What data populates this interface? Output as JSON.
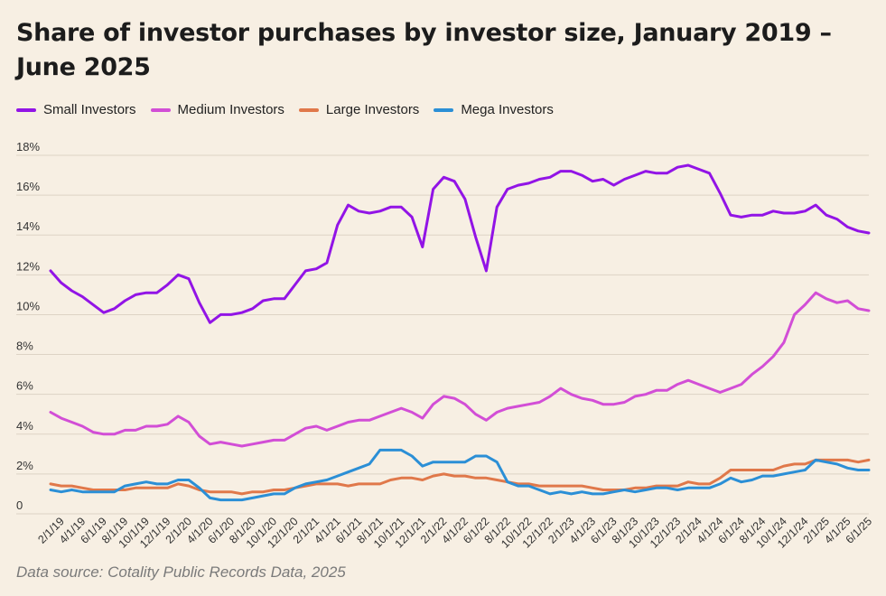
{
  "chart_data": {
    "type": "line",
    "title": "Share of investor purchases by investor size, January 2019 – June 2025",
    "xlabel": "",
    "ylabel": "",
    "ylim": [
      0,
      18
    ],
    "y_ticks": [
      "0",
      "2%",
      "4%",
      "6%",
      "8%",
      "10%",
      "12%",
      "14%",
      "16%",
      "18%"
    ],
    "x_tick_labels": [
      "2/1/19",
      "4/1/19",
      "6/1/19",
      "8/1/19",
      "10/1/19",
      "12/1/19",
      "2/1/20",
      "4/1/20",
      "6/1/20",
      "8/1/20",
      "10/1/20",
      "12/1/20",
      "2/1/21",
      "4/1/21",
      "6/1/21",
      "8/1/21",
      "10/1/21",
      "12/1/21",
      "2/1/22",
      "4/1/22",
      "6/1/22",
      "8/1/22",
      "10/1/22",
      "12/1/22",
      "2/1/23",
      "4/1/23",
      "6/1/23",
      "8/1/23",
      "10/1/23",
      "12/1/23",
      "2/1/24",
      "4/1/24",
      "6/1/24",
      "8/1/24",
      "10/1/24",
      "12/1/24",
      "2/1/25",
      "4/1/25",
      "6/1/25"
    ],
    "legend_position": "top-left",
    "series": [
      {
        "name": "Small Investors",
        "color": "#9214e6",
        "values": [
          12.2,
          11.6,
          11.2,
          10.9,
          10.5,
          10.1,
          10.3,
          10.7,
          11.0,
          11.1,
          11.1,
          11.5,
          12.0,
          11.8,
          10.6,
          9.6,
          10.0,
          10.0,
          10.1,
          10.3,
          10.7,
          10.8,
          10.8,
          11.5,
          12.2,
          12.3,
          12.6,
          14.5,
          15.5,
          15.2,
          15.1,
          15.2,
          15.4,
          15.4,
          14.9,
          13.4,
          16.3,
          16.9,
          16.7,
          15.8,
          13.9,
          12.2,
          15.4,
          16.3,
          16.5,
          16.6,
          16.8,
          16.9,
          17.2,
          17.2,
          17.0,
          16.7,
          16.8,
          16.5,
          16.8,
          17.0,
          17.2,
          17.1,
          17.1,
          17.4,
          17.5,
          17.3,
          17.1,
          16.1,
          15.0,
          14.9,
          15.0,
          15.0,
          15.2,
          15.1,
          15.1,
          15.2,
          15.5,
          15.0,
          14.8,
          14.4,
          14.2,
          14.1
        ]
      },
      {
        "name": "Medium Investors",
        "color": "#d24ed6",
        "values": [
          5.1,
          4.8,
          4.6,
          4.4,
          4.1,
          4.0,
          4.0,
          4.2,
          4.2,
          4.4,
          4.4,
          4.5,
          4.9,
          4.6,
          3.9,
          3.5,
          3.6,
          3.5,
          3.4,
          3.5,
          3.6,
          3.7,
          3.7,
          4.0,
          4.3,
          4.4,
          4.2,
          4.4,
          4.6,
          4.7,
          4.7,
          4.9,
          5.1,
          5.3,
          5.1,
          4.8,
          5.5,
          5.9,
          5.8,
          5.5,
          5.0,
          4.7,
          5.1,
          5.3,
          5.4,
          5.5,
          5.6,
          5.9,
          6.3,
          6.0,
          5.8,
          5.7,
          5.5,
          5.5,
          5.6,
          5.9,
          6.0,
          6.2,
          6.2,
          6.5,
          6.7,
          6.5,
          6.3,
          6.1,
          6.3,
          6.5,
          7.0,
          7.4,
          7.9,
          8.6,
          10.0,
          10.5,
          11.1,
          10.8,
          10.6,
          10.7,
          10.3,
          10.2
        ]
      },
      {
        "name": "Large Investors",
        "color": "#e0784a",
        "values": [
          1.5,
          1.4,
          1.4,
          1.3,
          1.2,
          1.2,
          1.2,
          1.2,
          1.3,
          1.3,
          1.3,
          1.3,
          1.5,
          1.4,
          1.2,
          1.1,
          1.1,
          1.1,
          1.0,
          1.1,
          1.1,
          1.2,
          1.2,
          1.3,
          1.4,
          1.5,
          1.5,
          1.5,
          1.4,
          1.5,
          1.5,
          1.5,
          1.7,
          1.8,
          1.8,
          1.7,
          1.9,
          2.0,
          1.9,
          1.9,
          1.8,
          1.8,
          1.7,
          1.6,
          1.5,
          1.5,
          1.4,
          1.4,
          1.4,
          1.4,
          1.4,
          1.3,
          1.2,
          1.2,
          1.2,
          1.3,
          1.3,
          1.4,
          1.4,
          1.4,
          1.6,
          1.5,
          1.5,
          1.8,
          2.2,
          2.2,
          2.2,
          2.2,
          2.2,
          2.4,
          2.5,
          2.5,
          2.7,
          2.7,
          2.7,
          2.7,
          2.6,
          2.7
        ]
      },
      {
        "name": "Mega Investors",
        "color": "#2b8fd6",
        "values": [
          1.2,
          1.1,
          1.2,
          1.1,
          1.1,
          1.1,
          1.1,
          1.4,
          1.5,
          1.6,
          1.5,
          1.5,
          1.7,
          1.7,
          1.3,
          0.8,
          0.7,
          0.7,
          0.7,
          0.8,
          0.9,
          1.0,
          1.0,
          1.3,
          1.5,
          1.6,
          1.7,
          1.9,
          2.1,
          2.3,
          2.5,
          3.2,
          3.2,
          3.2,
          2.9,
          2.4,
          2.6,
          2.6,
          2.6,
          2.6,
          2.9,
          2.9,
          2.6,
          1.6,
          1.4,
          1.4,
          1.2,
          1.0,
          1.1,
          1.0,
          1.1,
          1.0,
          1.0,
          1.1,
          1.2,
          1.1,
          1.2,
          1.3,
          1.3,
          1.2,
          1.3,
          1.3,
          1.3,
          1.5,
          1.8,
          1.6,
          1.7,
          1.9,
          1.9,
          2.0,
          2.1,
          2.2,
          2.7,
          2.6,
          2.5,
          2.3,
          2.2,
          2.2
        ]
      }
    ],
    "source": "Data source: Cotality Public Records Data, 2025"
  },
  "colors": {
    "background": "#f7efe3",
    "grid": "#ddd3c5",
    "text": "#1c1c1c",
    "source_text": "#7a7a7a"
  }
}
